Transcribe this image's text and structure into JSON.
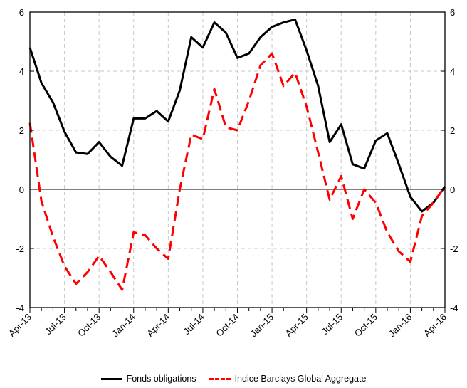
{
  "chart_data": {
    "type": "line",
    "title": "",
    "xlabel": "",
    "ylabel": "",
    "x": [
      "Apr-13",
      "May-13",
      "Jun-13",
      "Jul-13",
      "Aug-13",
      "Sep-13",
      "Oct-13",
      "Nov-13",
      "Dec-13",
      "Jan-14",
      "Feb-14",
      "Mar-14",
      "Apr-14",
      "May-14",
      "Jun-14",
      "Jul-14",
      "Aug-14",
      "Sep-14",
      "Oct-14",
      "Nov-14",
      "Dec-14",
      "Jan-15",
      "Feb-15",
      "Mar-15",
      "Apr-15",
      "May-15",
      "Jun-15",
      "Jul-15",
      "Aug-15",
      "Sep-15",
      "Oct-15",
      "Nov-15",
      "Dec-15",
      "Jan-16",
      "Feb-16",
      "Mar-16",
      "Apr-16"
    ],
    "x_tick_labels": [
      "Apr-13",
      "Jul-13",
      "Oct-13",
      "Jan-14",
      "Apr-14",
      "Jul-14",
      "Oct-14",
      "Jan-15",
      "Apr-15",
      "Jul-15",
      "Oct-15",
      "Jan-16",
      "Apr-16"
    ],
    "ylim": [
      -4,
      6
    ],
    "y_ticks": [
      "6",
      "4",
      "2",
      "0",
      "-2",
      "-4"
    ],
    "y_tick_values": [
      6,
      4,
      2,
      0,
      -2,
      -4
    ],
    "dual_y_axis": true,
    "grid": true,
    "zero_line": true,
    "legend_position": "bottom",
    "series": [
      {
        "name": "Fonds obligations",
        "color": "#000000",
        "style": "solid",
        "values": [
          4.8,
          3.6,
          2.95,
          1.95,
          1.25,
          1.2,
          1.6,
          1.1,
          0.8,
          2.4,
          2.4,
          2.65,
          2.3,
          3.35,
          5.15,
          4.8,
          5.65,
          5.3,
          4.45,
          4.6,
          5.15,
          5.5,
          5.65,
          5.75,
          4.7,
          3.5,
          1.6,
          2.2,
          0.85,
          0.7,
          1.65,
          1.9,
          0.85,
          -0.25,
          -0.75,
          -0.45,
          0.1
        ]
      },
      {
        "name": "Indice Barclays Global Aggregate",
        "color": "#ff0000",
        "style": "dashed",
        "values": [
          2.25,
          -0.4,
          -1.6,
          -2.6,
          -3.2,
          -2.8,
          -2.25,
          -2.8,
          -3.4,
          -1.45,
          -1.55,
          -2.0,
          -2.35,
          0.0,
          1.85,
          1.7,
          3.4,
          2.1,
          2.0,
          3.0,
          4.2,
          4.6,
          3.5,
          3.95,
          2.8,
          1.25,
          -0.35,
          0.45,
          -1.0,
          0.0,
          -0.45,
          -1.45,
          -2.1,
          -2.45,
          -0.9,
          -0.45,
          0.1
        ]
      }
    ]
  }
}
